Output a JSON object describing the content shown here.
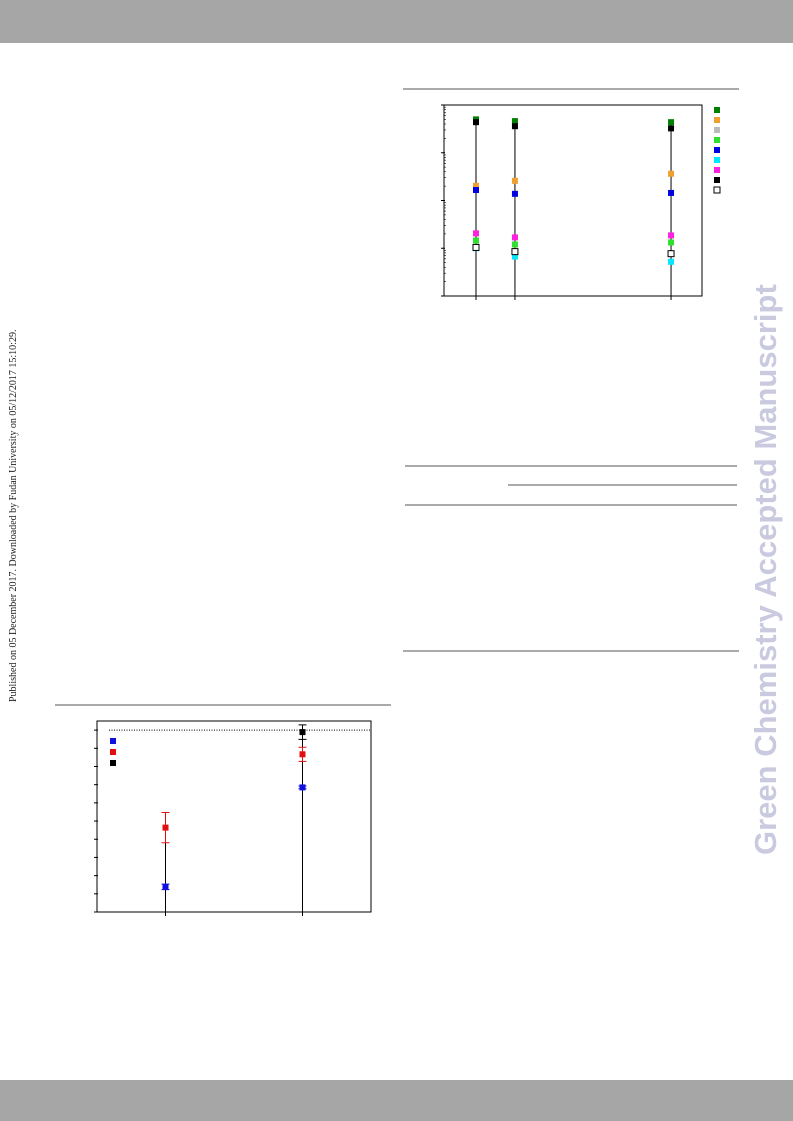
{
  "side_note": "Published on 05 December 2017. Downloaded by Fudan University on 05/12/2017 15:10:29.",
  "watermark": "Green Chemistry Accepted Manuscript",
  "chart_data": [
    {
      "type": "scatter",
      "log_y": true,
      "x": [
        12.4,
        27.5,
        88
      ],
      "xlim": [
        0,
        100
      ],
      "xticks": [
        12.4,
        27.5,
        88
      ],
      "ylim": [
        1,
        10000
      ],
      "yticks": [
        1,
        10,
        100,
        1000,
        10000
      ],
      "series": [
        {
          "color": "#007f00",
          "values": [
            5000,
            4600,
            4370
          ]
        },
        {
          "color": "#f0a030",
          "values": [
            203,
            258,
            363
          ]
        },
        {
          "color": "#bbbbbb",
          "values": [
            null,
            null,
            null
          ]
        },
        {
          "color": "#30e030",
          "values": [
            14.5,
            12,
            13.2
          ]
        },
        {
          "color": "#0000e0",
          "values": [
            166,
            138,
            144
          ]
        },
        {
          "color": "#00e8ff",
          "values": [
            10,
            6.7,
            5.2
          ]
        },
        {
          "color": "#ff20e0",
          "values": [
            20.5,
            16.9,
            18.6
          ]
        },
        {
          "color": "#000000",
          "values": [
            4370,
            3600,
            3240
          ]
        },
        {
          "color": "#ffffff",
          "stroke": "#000000",
          "values": [
            10.4,
            8.5,
            7.7
          ]
        }
      ]
    },
    {
      "type": "errorbar",
      "x": [
        25,
        75
      ],
      "xlim": [
        0,
        100
      ],
      "xticks": [
        25,
        75
      ],
      "ylim": [
        0,
        105
      ],
      "yticks": [
        0,
        10,
        20,
        30,
        40,
        50,
        60,
        70,
        80,
        90,
        100
      ],
      "reference_line": 100,
      "series": [
        {
          "color": "#1010e0",
          "values": [
            13.8,
            68.5
          ],
          "errors": [
            1.5,
            0.8
          ]
        },
        {
          "color": "#e01010",
          "values": [
            46.4,
            86.7
          ],
          "errors": [
            8.3,
            3.9
          ]
        },
        {
          "color": "#000000",
          "values": [
            null,
            98.9
          ],
          "errors": [
            null,
            4
          ]
        }
      ]
    }
  ]
}
